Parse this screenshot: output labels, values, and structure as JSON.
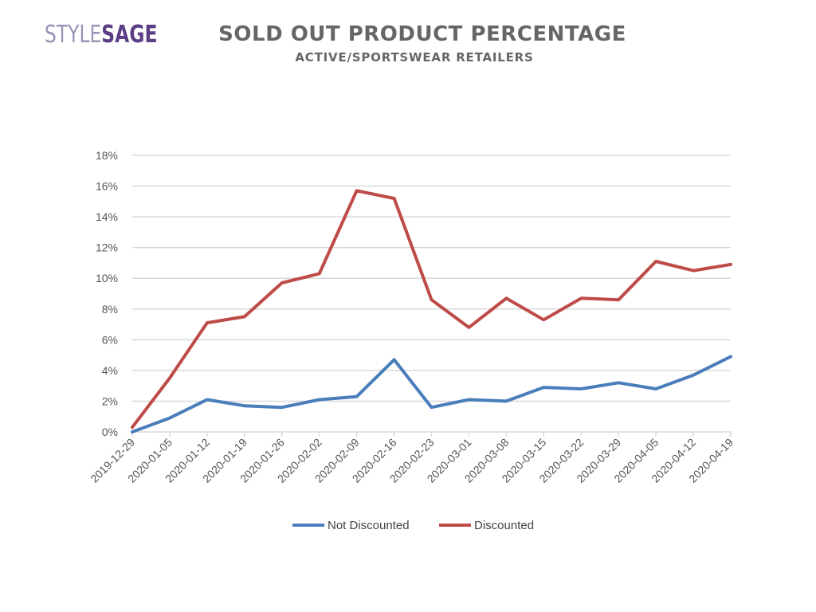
{
  "logo": {
    "part1": "STYLE",
    "part2": "SAGE"
  },
  "header": {
    "title": "SOLD OUT PRODUCT PERCENTAGE",
    "subtitle": "ACTIVE/SPORTSWEAR RETAILERS"
  },
  "colors": {
    "not_discounted": "#4a7ebb",
    "discounted": "#be4b48",
    "grid": "#d9d9d9",
    "text": "#666666"
  },
  "chart_data": {
    "type": "line",
    "x": [
      "2019-12-29",
      "2020-01-05",
      "2020-01-12",
      "2020-01-19",
      "2020-01-26",
      "2020-02-02",
      "2020-02-09",
      "2020-02-16",
      "2020-02-23",
      "2020-03-01",
      "2020-03-08",
      "2020-03-15",
      "2020-03-22",
      "2020-03-29",
      "2020-04-05",
      "2020-04-12",
      "2020-04-19"
    ],
    "series": [
      {
        "name": "Not Discounted",
        "values": [
          0.0,
          0.9,
          2.1,
          1.7,
          1.6,
          2.1,
          2.3,
          4.7,
          1.6,
          2.1,
          2.0,
          2.9,
          2.8,
          3.2,
          2.8,
          3.7,
          4.9
        ]
      },
      {
        "name": "Discounted",
        "values": [
          0.3,
          3.5,
          7.1,
          7.5,
          9.7,
          10.3,
          15.7,
          15.2,
          8.6,
          6.8,
          8.7,
          7.3,
          8.7,
          8.6,
          11.1,
          10.5,
          10.9
        ]
      }
    ],
    "yticks": [
      "0%",
      "2%",
      "4%",
      "6%",
      "8%",
      "10%",
      "12%",
      "14%",
      "16%",
      "18%"
    ],
    "ylim": [
      0,
      18
    ],
    "grid": true,
    "legend_position": "bottom"
  }
}
